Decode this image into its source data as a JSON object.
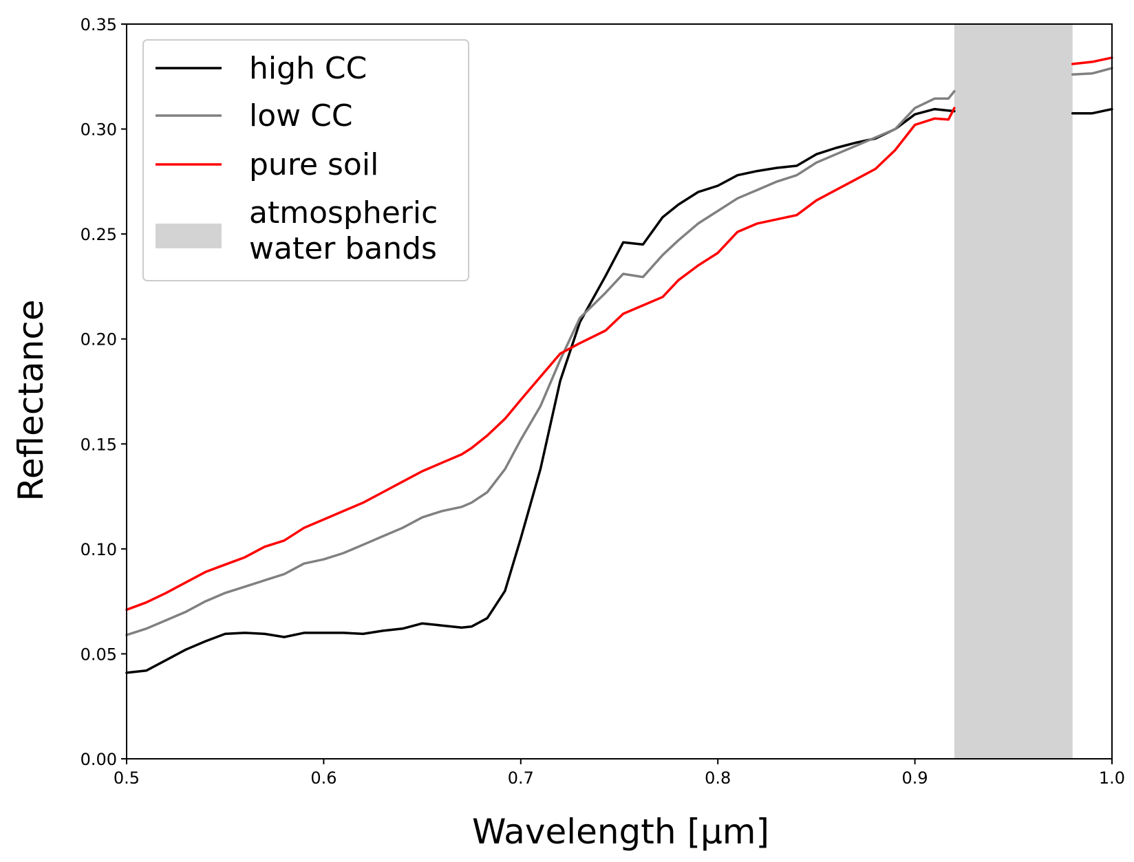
{
  "chart_data": {
    "type": "line",
    "title": "",
    "xlabel": "Wavelength [μm]",
    "ylabel": "Reflectance",
    "xlim": [
      0.5,
      1.0
    ],
    "ylim": [
      0.0,
      0.35
    ],
    "xticks": [
      0.5,
      0.6,
      0.7,
      0.8,
      0.9,
      1.0
    ],
    "xtick_labels": [
      "0.5",
      "0.6",
      "0.7",
      "0.8",
      "0.9",
      "1.0"
    ],
    "yticks": [
      0.0,
      0.05,
      0.1,
      0.15,
      0.2,
      0.25,
      0.3,
      0.35
    ],
    "ytick_labels": [
      "0.00",
      "0.05",
      "0.10",
      "0.15",
      "0.20",
      "0.25",
      "0.30",
      "0.35"
    ],
    "grid": false,
    "legend_position": "top-left",
    "shaded_region": {
      "name": "atmospheric water bands",
      "x_start": 0.92,
      "x_end": 0.98,
      "color": "#d3d3d3"
    },
    "series": [
      {
        "name": "high CC",
        "color": "#000000",
        "x": [
          0.5,
          0.51,
          0.52,
          0.53,
          0.54,
          0.55,
          0.56,
          0.57,
          0.58,
          0.59,
          0.6,
          0.61,
          0.62,
          0.63,
          0.64,
          0.65,
          0.66,
          0.67,
          0.675,
          0.683,
          0.692,
          0.7,
          0.71,
          0.72,
          0.73,
          0.743,
          0.752,
          0.762,
          0.772,
          0.78,
          0.79,
          0.8,
          0.81,
          0.82,
          0.83,
          0.84,
          0.85,
          0.86,
          0.87,
          0.88,
          0.89,
          0.9,
          0.91,
          0.92,
          0.98,
          0.99,
          1.0
        ],
        "values": [
          0.041,
          0.042,
          0.047,
          0.052,
          0.056,
          0.0595,
          0.06,
          0.0595,
          0.058,
          0.06,
          0.06,
          0.06,
          0.0595,
          0.061,
          0.062,
          0.0645,
          0.0635,
          0.0625,
          0.063,
          0.067,
          0.08,
          0.105,
          0.138,
          0.18,
          0.208,
          0.23,
          0.246,
          0.245,
          0.258,
          0.264,
          0.27,
          0.273,
          0.278,
          0.28,
          0.2815,
          0.2825,
          0.288,
          0.291,
          0.2935,
          0.2955,
          0.3,
          0.307,
          0.3095,
          0.3085,
          0.3075,
          0.3075,
          0.3095
        ]
      },
      {
        "name": "low CC",
        "color": "#808080",
        "x": [
          0.5,
          0.51,
          0.52,
          0.53,
          0.54,
          0.55,
          0.56,
          0.57,
          0.58,
          0.59,
          0.6,
          0.61,
          0.62,
          0.63,
          0.64,
          0.65,
          0.66,
          0.67,
          0.675,
          0.683,
          0.692,
          0.7,
          0.71,
          0.72,
          0.73,
          0.743,
          0.752,
          0.762,
          0.772,
          0.78,
          0.79,
          0.8,
          0.81,
          0.82,
          0.83,
          0.84,
          0.85,
          0.86,
          0.87,
          0.88,
          0.89,
          0.9,
          0.91,
          0.917,
          0.92,
          0.98,
          0.99,
          1.0
        ],
        "values": [
          0.059,
          0.062,
          0.066,
          0.07,
          0.075,
          0.079,
          0.082,
          0.085,
          0.088,
          0.093,
          0.095,
          0.098,
          0.102,
          0.106,
          0.11,
          0.115,
          0.118,
          0.12,
          0.122,
          0.127,
          0.138,
          0.152,
          0.168,
          0.19,
          0.21,
          0.222,
          0.231,
          0.2295,
          0.24,
          0.247,
          0.255,
          0.261,
          0.267,
          0.271,
          0.275,
          0.278,
          0.284,
          0.288,
          0.292,
          0.296,
          0.3,
          0.31,
          0.3145,
          0.3145,
          0.318,
          0.326,
          0.3265,
          0.329
        ]
      },
      {
        "name": "pure soil",
        "color": "#ff0000",
        "x": [
          0.5,
          0.51,
          0.52,
          0.53,
          0.54,
          0.55,
          0.56,
          0.57,
          0.58,
          0.59,
          0.6,
          0.61,
          0.62,
          0.63,
          0.64,
          0.65,
          0.66,
          0.67,
          0.675,
          0.683,
          0.692,
          0.7,
          0.71,
          0.72,
          0.73,
          0.743,
          0.752,
          0.762,
          0.772,
          0.78,
          0.79,
          0.8,
          0.81,
          0.82,
          0.83,
          0.84,
          0.85,
          0.86,
          0.87,
          0.88,
          0.89,
          0.9,
          0.91,
          0.917,
          0.92,
          0.98,
          0.99,
          1.0
        ],
        "values": [
          0.071,
          0.0745,
          0.079,
          0.084,
          0.089,
          0.0925,
          0.096,
          0.101,
          0.104,
          0.11,
          0.114,
          0.118,
          0.122,
          0.127,
          0.132,
          0.137,
          0.141,
          0.145,
          0.148,
          0.154,
          0.162,
          0.171,
          0.182,
          0.193,
          0.198,
          0.204,
          0.212,
          0.216,
          0.22,
          0.228,
          0.235,
          0.241,
          0.251,
          0.255,
          0.257,
          0.259,
          0.266,
          0.271,
          0.276,
          0.281,
          0.29,
          0.302,
          0.305,
          0.3045,
          0.31,
          0.331,
          0.332,
          0.334
        ]
      }
    ]
  }
}
